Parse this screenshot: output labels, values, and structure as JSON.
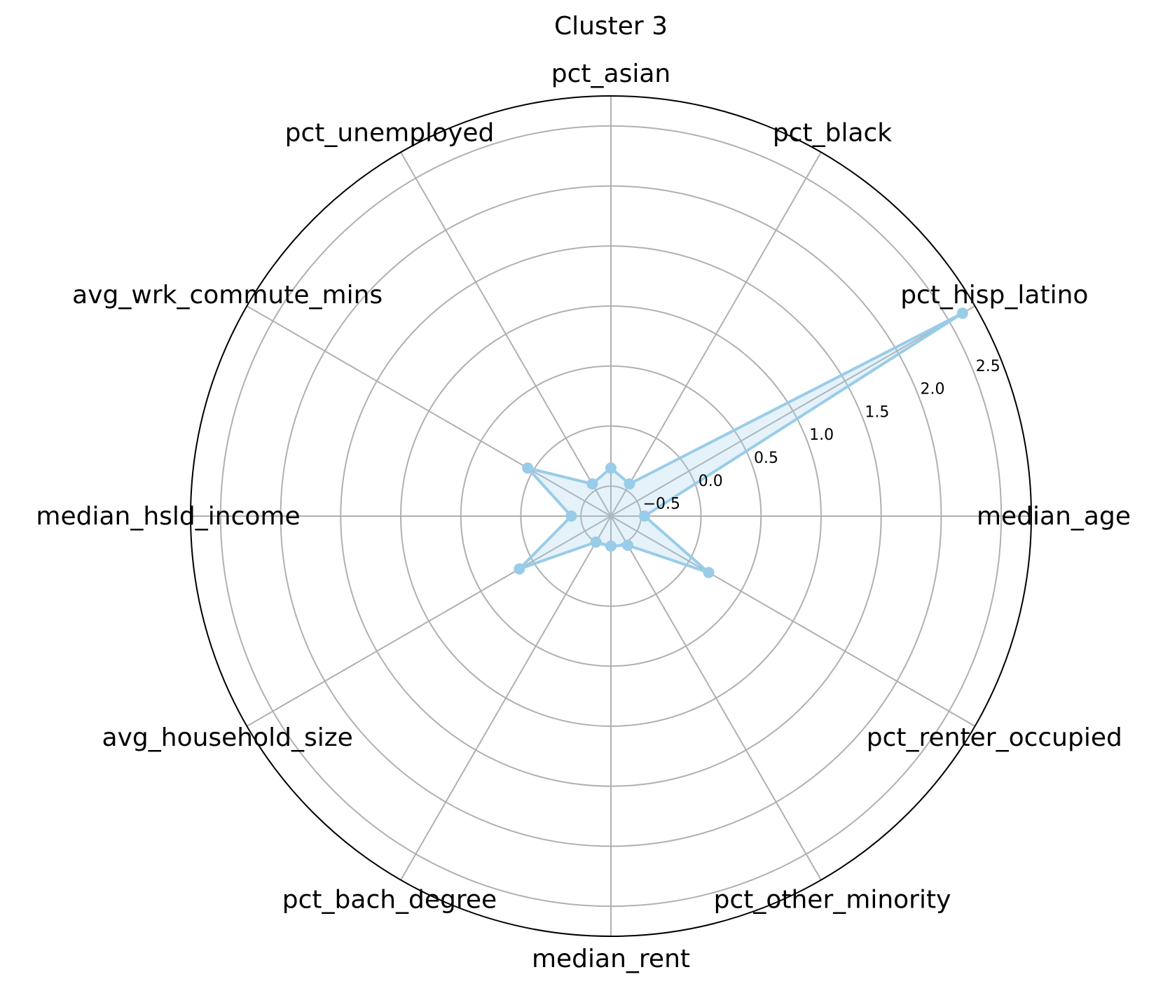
{
  "chart_data": {
    "type": "radar",
    "title": "Cluster 3",
    "categories": [
      "median_age",
      "pct_hisp_latino",
      "pct_black",
      "pct_asian",
      "pct_unemployed",
      "avg_wrk_commute_mins",
      "median_hsld_income",
      "avg_household_size",
      "pct_bach_degree",
      "median_rent",
      "pct_other_minority",
      "pct_renter_occupied"
    ],
    "series": [
      {
        "values": [
          -0.47,
          2.63,
          -0.44,
          -0.35,
          -0.44,
          0.05,
          -0.42,
          0.13,
          -0.5,
          -0.5,
          -0.47,
          0.19
        ]
      }
    ],
    "rlim": [
      -0.75,
      2.75
    ],
    "rticks": [
      -0.5,
      0.0,
      0.5,
      1.0,
      1.5,
      2.0,
      2.5
    ],
    "rtick_labels": [
      "−0.5",
      "0.0",
      "0.5",
      "1.0",
      "1.5",
      "2.0",
      "2.5"
    ],
    "grid": true,
    "series_color": "#99cce8",
    "fill_color": "#99cce8"
  }
}
